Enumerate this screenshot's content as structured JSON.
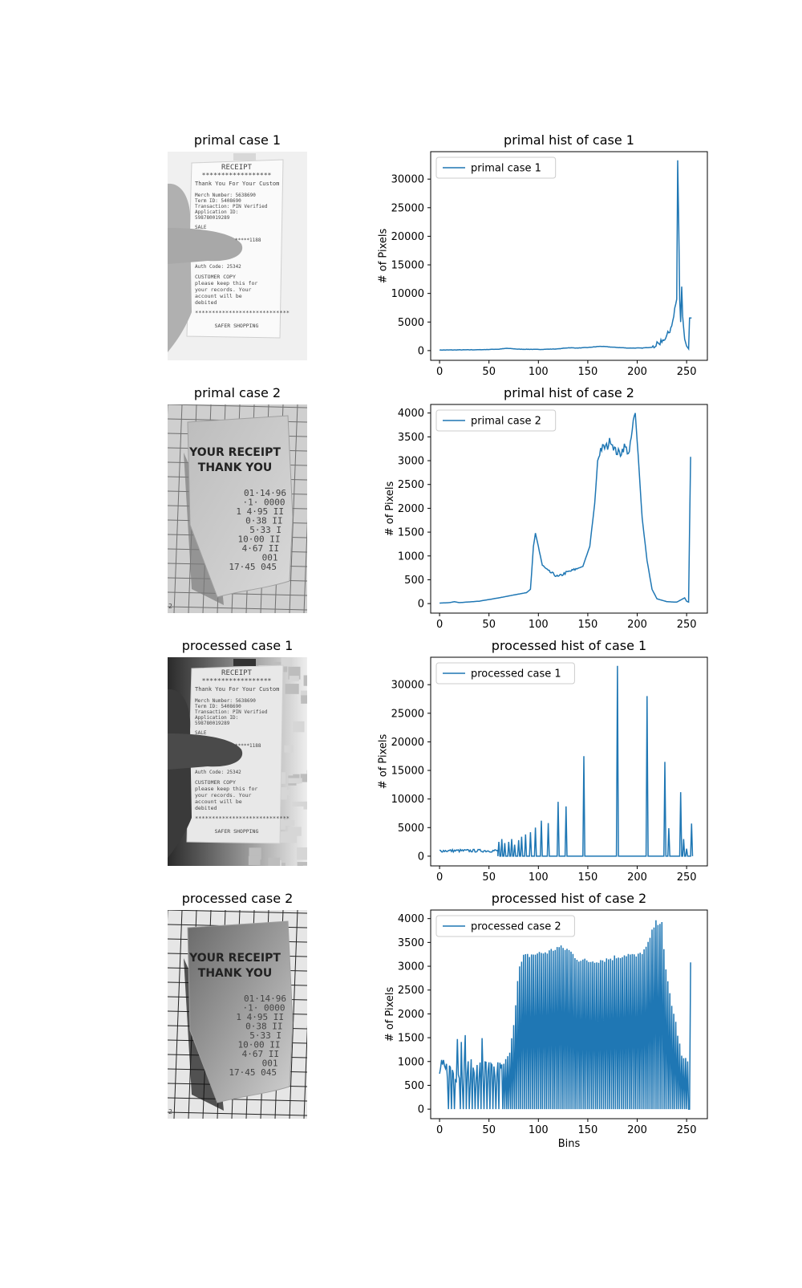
{
  "photos": [
    {
      "title": "primal case 1",
      "kind": "receipt1",
      "processed": false
    },
    {
      "title": "primal case 2",
      "kind": "receipt2",
      "processed": false
    },
    {
      "title": "processed case 1",
      "kind": "receipt1",
      "processed": true
    },
    {
      "title": "processed case 2",
      "kind": "receipt2",
      "processed": true
    }
  ],
  "receipt1_text": {
    "header": "RECEIPT",
    "stars": "******************",
    "thanks": "Thank You For Your Custom",
    "lines": [
      "Merch Number: 5638690",
      "Term ID: 5408690",
      "Transaction: PIN Verified",
      "Application ID:",
      "598780019289"
    ],
    "sale": "SALE",
    "masked": "*****1188",
    "auth": "Auth Code: 25342",
    "copy": [
      "CUSTOMER COPY",
      "please keep this for",
      "your records. Your",
      "account will be",
      "debited"
    ],
    "footer_stars": "****************************",
    "footer": "SAFER SHOPPING"
  },
  "receipt2_text": {
    "title": [
      "YOUR RECEIPT",
      "THANK YOU"
    ],
    "lines": [
      "01·14·96",
      "·1·    0000",
      "1    4·95  II",
      "0·38  II",
      "5·33  I",
      "10·00  II",
      "4·67  II",
      "001",
      "17·45 045"
    ],
    "corner": "2"
  },
  "chart_data": [
    {
      "type": "line",
      "title": "primal hist of case 1",
      "ylabel": "# of Pixels",
      "xlabel": "",
      "xlim": [
        -9,
        271
      ],
      "ylim": [
        -1700,
        34800
      ],
      "xticks": [
        0,
        50,
        100,
        150,
        200,
        250
      ],
      "yticks": [
        0,
        5000,
        10000,
        15000,
        20000,
        25000,
        30000
      ],
      "legend": "upper left",
      "series": [
        {
          "name": "primal case 1",
          "color": "#1f77b4",
          "shape": "primal1"
        }
      ]
    },
    {
      "type": "line",
      "title": "primal hist of case 2",
      "ylabel": "# of Pixels",
      "xlabel": "",
      "xlim": [
        -9,
        271
      ],
      "ylim": [
        -200,
        4180
      ],
      "xticks": [
        0,
        50,
        100,
        150,
        200,
        250
      ],
      "yticks": [
        0,
        500,
        1000,
        1500,
        2000,
        2500,
        3000,
        3500,
        4000
      ],
      "legend": "upper left",
      "series": [
        {
          "name": "primal case 2",
          "color": "#1f77b4",
          "shape": "primal2"
        }
      ]
    },
    {
      "type": "line",
      "title": "processed hist of case 1",
      "ylabel": "# of Pixels",
      "xlabel": "",
      "xlim": [
        -9,
        271
      ],
      "ylim": [
        -1700,
        34800
      ],
      "xticks": [
        0,
        50,
        100,
        150,
        200,
        250
      ],
      "yticks": [
        0,
        5000,
        10000,
        15000,
        20000,
        25000,
        30000
      ],
      "legend": "upper left",
      "series": [
        {
          "name": "processed case 1",
          "color": "#1f77b4",
          "shape": "proc1"
        }
      ]
    },
    {
      "type": "line",
      "title": "processed hist of case 2",
      "ylabel": "# of Pixels",
      "xlabel": "Bins",
      "xlim": [
        -9,
        271
      ],
      "ylim": [
        -200,
        4180
      ],
      "xticks": [
        0,
        50,
        100,
        150,
        200,
        250
      ],
      "yticks": [
        0,
        500,
        1000,
        1500,
        2000,
        2500,
        3000,
        3500,
        4000
      ],
      "legend": "upper left",
      "series": [
        {
          "name": "processed case 2",
          "color": "#1f77b4",
          "shape": "proc2"
        }
      ]
    }
  ]
}
